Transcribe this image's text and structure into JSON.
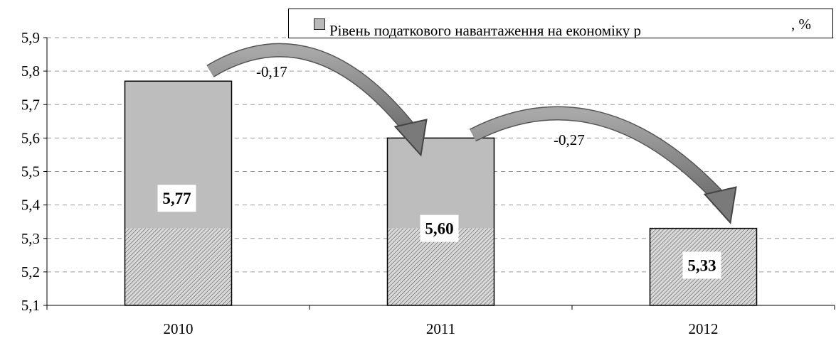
{
  "chart_data": {
    "type": "bar",
    "categories": [
      "2010",
      "2011",
      "2012"
    ],
    "series": [
      {
        "name": "Рівень податкового навантаження на економіку р",
        "values": [
          5.77,
          5.6,
          5.33
        ]
      }
    ],
    "data_labels": [
      "5,77",
      "5,60",
      "5,33"
    ],
    "ylim": [
      5.1,
      5.9
    ],
    "yticks": [
      "5,1",
      "5,2",
      "5,3",
      "5,4",
      "5,5",
      "5,6",
      "5,7",
      "5,8",
      "5,9"
    ],
    "ytick_values": [
      5.1,
      5.2,
      5.3,
      5.4,
      5.5,
      5.6,
      5.7,
      5.8,
      5.9
    ],
    "grid": true,
    "legend_position": "top",
    "legend_unit": ", %",
    "annotations": [
      {
        "text": "-0,17",
        "from": "2010",
        "to": "2011"
      },
      {
        "text": "-0,27",
        "from": "2011",
        "to": "2012"
      }
    ],
    "colors": {
      "bar": "#bdbdbd",
      "arrow": "#8a8a8a",
      "grid": "#9a9a9a"
    }
  }
}
